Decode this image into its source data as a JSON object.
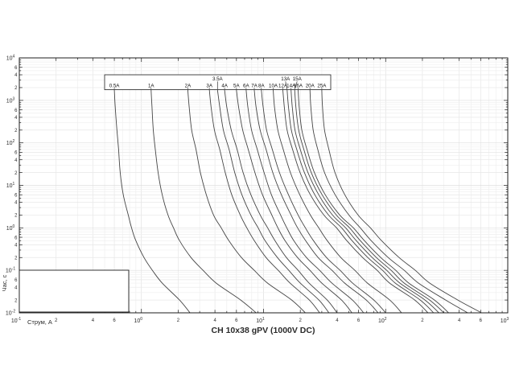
{
  "page": {
    "background": "#ffffff"
  },
  "colors": {
    "curve": "#454545",
    "frame": "#1c1c1c",
    "tick": "#1c1c1c",
    "text": "#2b2b2b",
    "grid_minor": "#efefef",
    "grid_mid": "#e7e7e7",
    "grid_major": "#dfdfdf",
    "box_fill": "#ffffff"
  },
  "chart_data": {
    "type": "line",
    "title": "CH 10x38 gPV (1000V DC)",
    "xlabel": "Струм, А",
    "ylabel": "Час, с",
    "x_axis": {
      "scale": "log",
      "min": 0.1,
      "max": 1000,
      "ticks": [
        "10⁻¹",
        "10⁰",
        "10¹",
        "10²",
        "10³"
      ],
      "labeled_minor_digits": [
        2,
        4,
        6
      ]
    },
    "y_axis": {
      "scale": "log",
      "min": 0.01,
      "max": 10000,
      "ticks": [
        "10⁴",
        "10³",
        "10²",
        "10¹",
        "10⁰",
        "10⁻¹",
        "10⁻²"
      ],
      "labeled_minor_digits": [
        6,
        4,
        2
      ]
    },
    "grid": true,
    "legend_position": "top-strip-box",
    "series": [
      {
        "name": "0.5A",
        "label_row": "bottom",
        "points": [
          [
            0.6,
            1750
          ],
          [
            0.61,
            700
          ],
          [
            0.63,
            200
          ],
          [
            0.65,
            70
          ],
          [
            0.67,
            20
          ],
          [
            0.71,
            6
          ],
          [
            0.78,
            2
          ],
          [
            0.83,
            1
          ],
          [
            0.9,
            0.5
          ],
          [
            1.05,
            0.2
          ],
          [
            1.23,
            0.1
          ],
          [
            1.48,
            0.05
          ],
          [
            2.05,
            0.02
          ],
          [
            2.5,
            0.01
          ]
        ]
      },
      {
        "name": "1A",
        "label_row": "bottom",
        "points": [
          [
            1.2,
            1750
          ],
          [
            1.22,
            700
          ],
          [
            1.25,
            200
          ],
          [
            1.3,
            70
          ],
          [
            1.37,
            20
          ],
          [
            1.48,
            6
          ],
          [
            1.65,
            2
          ],
          [
            1.83,
            1
          ],
          [
            2.05,
            0.5
          ],
          [
            2.55,
            0.2
          ],
          [
            3.2,
            0.1
          ],
          [
            4.1,
            0.05
          ],
          [
            6.5,
            0.02
          ],
          [
            8.7,
            0.01
          ]
        ]
      },
      {
        "name": "2A",
        "label_row": "bottom",
        "points": [
          [
            2.4,
            1750
          ],
          [
            2.46,
            700
          ],
          [
            2.58,
            200
          ],
          [
            2.8,
            70
          ],
          [
            3.04,
            20
          ],
          [
            3.4,
            6
          ],
          [
            3.9,
            2
          ],
          [
            4.5,
            1
          ],
          [
            5.2,
            0.5
          ],
          [
            6.6,
            0.2
          ],
          [
            8.4,
            0.1
          ],
          [
            10.8,
            0.05
          ],
          [
            17.0,
            0.02
          ],
          [
            22.0,
            0.01
          ]
        ]
      },
      {
        "name": "3A",
        "label_row": "bottom",
        "points": [
          [
            3.6,
            1750
          ],
          [
            3.72,
            700
          ],
          [
            3.96,
            200
          ],
          [
            4.38,
            70
          ],
          [
            4.86,
            20
          ],
          [
            5.49,
            6
          ],
          [
            6.45,
            2
          ],
          [
            7.29,
            1
          ],
          [
            8.4,
            0.5
          ],
          [
            10.5,
            0.2
          ],
          [
            13.2,
            0.1
          ],
          [
            16.5,
            0.05
          ],
          [
            23.7,
            0.02
          ],
          [
            28.8,
            0.01
          ]
        ]
      },
      {
        "name": "3.5A",
        "label_row": "top",
        "points": [
          [
            4.2,
            1750
          ],
          [
            4.38,
            700
          ],
          [
            4.69,
            200
          ],
          [
            5.22,
            70
          ],
          [
            5.81,
            20
          ],
          [
            6.65,
            6
          ],
          [
            7.88,
            2
          ],
          [
            9.03,
            1
          ],
          [
            10.3,
            0.5
          ],
          [
            13.0,
            0.2
          ],
          [
            16.1,
            0.1
          ],
          [
            20.0,
            0.05
          ],
          [
            28.4,
            0.02
          ],
          [
            34.3,
            0.01
          ]
        ]
      },
      {
        "name": "4A",
        "label_row": "bottom",
        "points": [
          [
            4.8,
            1750
          ],
          [
            5.0,
            700
          ],
          [
            5.44,
            200
          ],
          [
            6.08,
            70
          ],
          [
            6.8,
            20
          ],
          [
            7.88,
            6
          ],
          [
            9.4,
            2
          ],
          [
            10.8,
            1
          ],
          [
            12.4,
            0.5
          ],
          [
            15.4,
            0.2
          ],
          [
            19.2,
            0.1
          ],
          [
            23.6,
            0.05
          ],
          [
            33.2,
            0.02
          ],
          [
            40.0,
            0.01
          ]
        ]
      },
      {
        "name": "5A",
        "label_row": "bottom",
        "points": [
          [
            6.0,
            1750
          ],
          [
            6.25,
            700
          ],
          [
            6.75,
            200
          ],
          [
            7.5,
            70
          ],
          [
            8.5,
            20
          ],
          [
            9.8,
            6
          ],
          [
            11.7,
            2
          ],
          [
            13.1,
            1
          ],
          [
            15.0,
            0.5
          ],
          [
            19.0,
            0.2
          ],
          [
            24.0,
            0.1
          ],
          [
            30.0,
            0.05
          ],
          [
            43.5,
            0.02
          ],
          [
            53.0,
            0.01
          ]
        ]
      },
      {
        "name": "6A",
        "label_row": "bottom",
        "points": [
          [
            7.2,
            1750
          ],
          [
            7.44,
            700
          ],
          [
            7.98,
            200
          ],
          [
            8.88,
            70
          ],
          [
            10.1,
            20
          ],
          [
            11.6,
            6
          ],
          [
            13.8,
            2
          ],
          [
            15.5,
            1
          ],
          [
            17.7,
            0.5
          ],
          [
            22.5,
            0.2
          ],
          [
            28.8,
            0.1
          ],
          [
            36.3,
            0.05
          ],
          [
            53.4,
            0.02
          ],
          [
            66.0,
            0.01
          ]
        ]
      },
      {
        "name": "7A",
        "label_row": "bottom",
        "points": [
          [
            8.4,
            1750
          ],
          [
            8.68,
            700
          ],
          [
            9.38,
            200
          ],
          [
            10.5,
            70
          ],
          [
            11.9,
            20
          ],
          [
            14.0,
            6
          ],
          [
            16.8,
            2
          ],
          [
            19.0,
            1
          ],
          [
            22.1,
            0.5
          ],
          [
            28.0,
            0.2
          ],
          [
            36.4,
            0.1
          ],
          [
            46.2,
            0.05
          ],
          [
            69.3,
            0.02
          ],
          [
            86.8,
            0.01
          ]
        ]
      },
      {
        "name": "8A",
        "label_row": "bottom",
        "points": [
          [
            9.6,
            1750
          ],
          [
            9.92,
            700
          ],
          [
            10.6,
            200
          ],
          [
            11.8,
            70
          ],
          [
            13.5,
            20
          ],
          [
            16.0,
            6
          ],
          [
            19.2,
            2
          ],
          [
            22.0,
            1
          ],
          [
            25.6,
            0.5
          ],
          [
            32.8,
            0.2
          ],
          [
            42.4,
            0.1
          ],
          [
            53.6,
            0.05
          ],
          [
            80.0,
            0.02
          ],
          [
            100,
            0.01
          ]
        ]
      },
      {
        "name": "10A",
        "label_row": "bottom",
        "points": [
          [
            12.0,
            1750
          ],
          [
            12.3,
            700
          ],
          [
            13.1,
            200
          ],
          [
            14.5,
            70
          ],
          [
            16.6,
            20
          ],
          [
            19.8,
            6
          ],
          [
            24.2,
            2
          ],
          [
            28.3,
            1
          ],
          [
            33.2,
            0.5
          ],
          [
            43.0,
            0.2
          ],
          [
            56.0,
            0.1
          ],
          [
            71.0,
            0.05
          ],
          [
            108,
            0.02
          ],
          [
            135,
            0.01
          ]
        ]
      },
      {
        "name": "12A",
        "label_row": "bottom",
        "points": [
          [
            14.4,
            1750
          ],
          [
            14.8,
            700
          ],
          [
            15.6,
            200
          ],
          [
            17.3,
            70
          ],
          [
            19.9,
            20
          ],
          [
            24.2,
            6
          ],
          [
            31.2,
            2
          ],
          [
            39.6,
            1
          ],
          [
            48.0,
            0.5
          ],
          [
            64.8,
            0.2
          ],
          [
            85.2,
            0.1
          ],
          [
            108,
            0.05
          ],
          [
            173,
            0.02
          ],
          [
            222,
            0.01
          ]
        ]
      },
      {
        "name": "13A",
        "label_row": "top",
        "points": [
          [
            15.6,
            1750
          ],
          [
            16.0,
            700
          ],
          [
            16.9,
            200
          ],
          [
            18.7,
            70
          ],
          [
            21.6,
            20
          ],
          [
            26.3,
            6
          ],
          [
            34.1,
            2
          ],
          [
            43.6,
            1
          ],
          [
            53.0,
            0.5
          ],
          [
            71.5,
            0.2
          ],
          [
            94.3,
            0.1
          ],
          [
            120,
            0.05
          ],
          [
            192,
            0.02
          ],
          [
            247,
            0.01
          ]
        ]
      },
      {
        "name": "14A",
        "label_row": "bottom",
        "points": [
          [
            16.8,
            1750
          ],
          [
            17.2,
            700
          ],
          [
            18.1,
            200
          ],
          [
            20.0,
            70
          ],
          [
            23.1,
            20
          ],
          [
            28.3,
            6
          ],
          [
            36.7,
            2
          ],
          [
            47.0,
            1
          ],
          [
            57.4,
            0.5
          ],
          [
            77.7,
            0.2
          ],
          [
            102,
            0.1
          ],
          [
            131,
            0.05
          ],
          [
            210,
            0.02
          ],
          [
            273,
            0.01
          ]
        ]
      },
      {
        "name": "15A",
        "label_row": "top",
        "points": [
          [
            18.0,
            1750
          ],
          [
            18.4,
            700
          ],
          [
            19.4,
            200
          ],
          [
            21.4,
            70
          ],
          [
            24.6,
            20
          ],
          [
            30.2,
            6
          ],
          [
            39.5,
            2
          ],
          [
            50.6,
            1
          ],
          [
            62.0,
            0.5
          ],
          [
            84.0,
            0.2
          ],
          [
            111,
            0.1
          ],
          [
            142,
            0.05
          ],
          [
            229,
            0.02
          ],
          [
            300,
            0.01
          ]
        ]
      },
      {
        "name": "16A",
        "label_row": "bottom",
        "points": [
          [
            19.2,
            1750
          ],
          [
            19.6,
            700
          ],
          [
            20.6,
            200
          ],
          [
            22.7,
            70
          ],
          [
            26.1,
            20
          ],
          [
            32.0,
            6
          ],
          [
            42.1,
            2
          ],
          [
            54.4,
            1
          ],
          [
            66.9,
            0.5
          ],
          [
            91.2,
            0.2
          ],
          [
            121,
            0.1
          ],
          [
            155,
            0.05
          ],
          [
            251,
            0.02
          ],
          [
            328,
            0.01
          ]
        ]
      },
      {
        "name": "20A",
        "label_row": "bottom",
        "points": [
          [
            24.0,
            1750
          ],
          [
            24.4,
            700
          ],
          [
            25.5,
            200
          ],
          [
            27.8,
            70
          ],
          [
            31.6,
            20
          ],
          [
            38.6,
            6
          ],
          [
            50.0,
            2
          ],
          [
            62.0,
            1
          ],
          [
            76.0,
            0.5
          ],
          [
            105,
            0.2
          ],
          [
            142,
            0.1
          ],
          [
            186,
            0.05
          ],
          [
            310,
            0.02
          ],
          [
            470,
            0.01
          ]
        ]
      },
      {
        "name": "25A",
        "label_row": "bottom",
        "points": [
          [
            30.0,
            1750
          ],
          [
            30.4,
            700
          ],
          [
            31.6,
            200
          ],
          [
            34.3,
            70
          ],
          [
            38.5,
            20
          ],
          [
            46.3,
            6
          ],
          [
            59.5,
            2
          ],
          [
            75.0,
            1
          ],
          [
            92.5,
            0.5
          ],
          [
            129,
            0.2
          ],
          [
            175,
            0.1
          ],
          [
            230,
            0.05
          ],
          [
            390,
            0.02
          ],
          [
            610,
            0.01
          ]
        ]
      }
    ],
    "annotations": {
      "empty_note_box": ""
    }
  }
}
